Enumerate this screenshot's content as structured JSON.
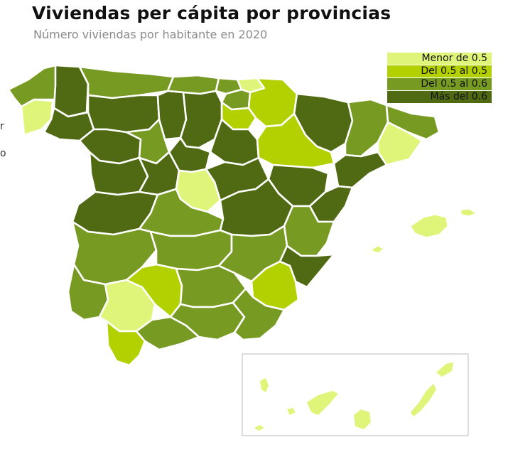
{
  "header": {
    "title": "Viviendas per cápita por provincias",
    "subtitle": "Número viviendas por habitante en 2020"
  },
  "legend": {
    "items": [
      {
        "label": "Menor de 0.5",
        "color": "#dff57a"
      },
      {
        "label": "Del 0.5 al 0.5",
        "color": "#b3d100"
      },
      {
        "label": "Del 0.5 al 0.6",
        "color": "#779a22"
      },
      {
        "label": "Más del 0.6",
        "color": "#4f6a12"
      }
    ]
  },
  "edge_text": {
    "top": "r",
    "bottom": "o"
  },
  "map": {
    "colors": {
      "c1": "#dff57a",
      "c2": "#b3d100",
      "c3": "#779a22",
      "c4": "#4f6a12",
      "border": "#ffffff",
      "inset_frame": "#bbbbbb"
    }
  }
}
